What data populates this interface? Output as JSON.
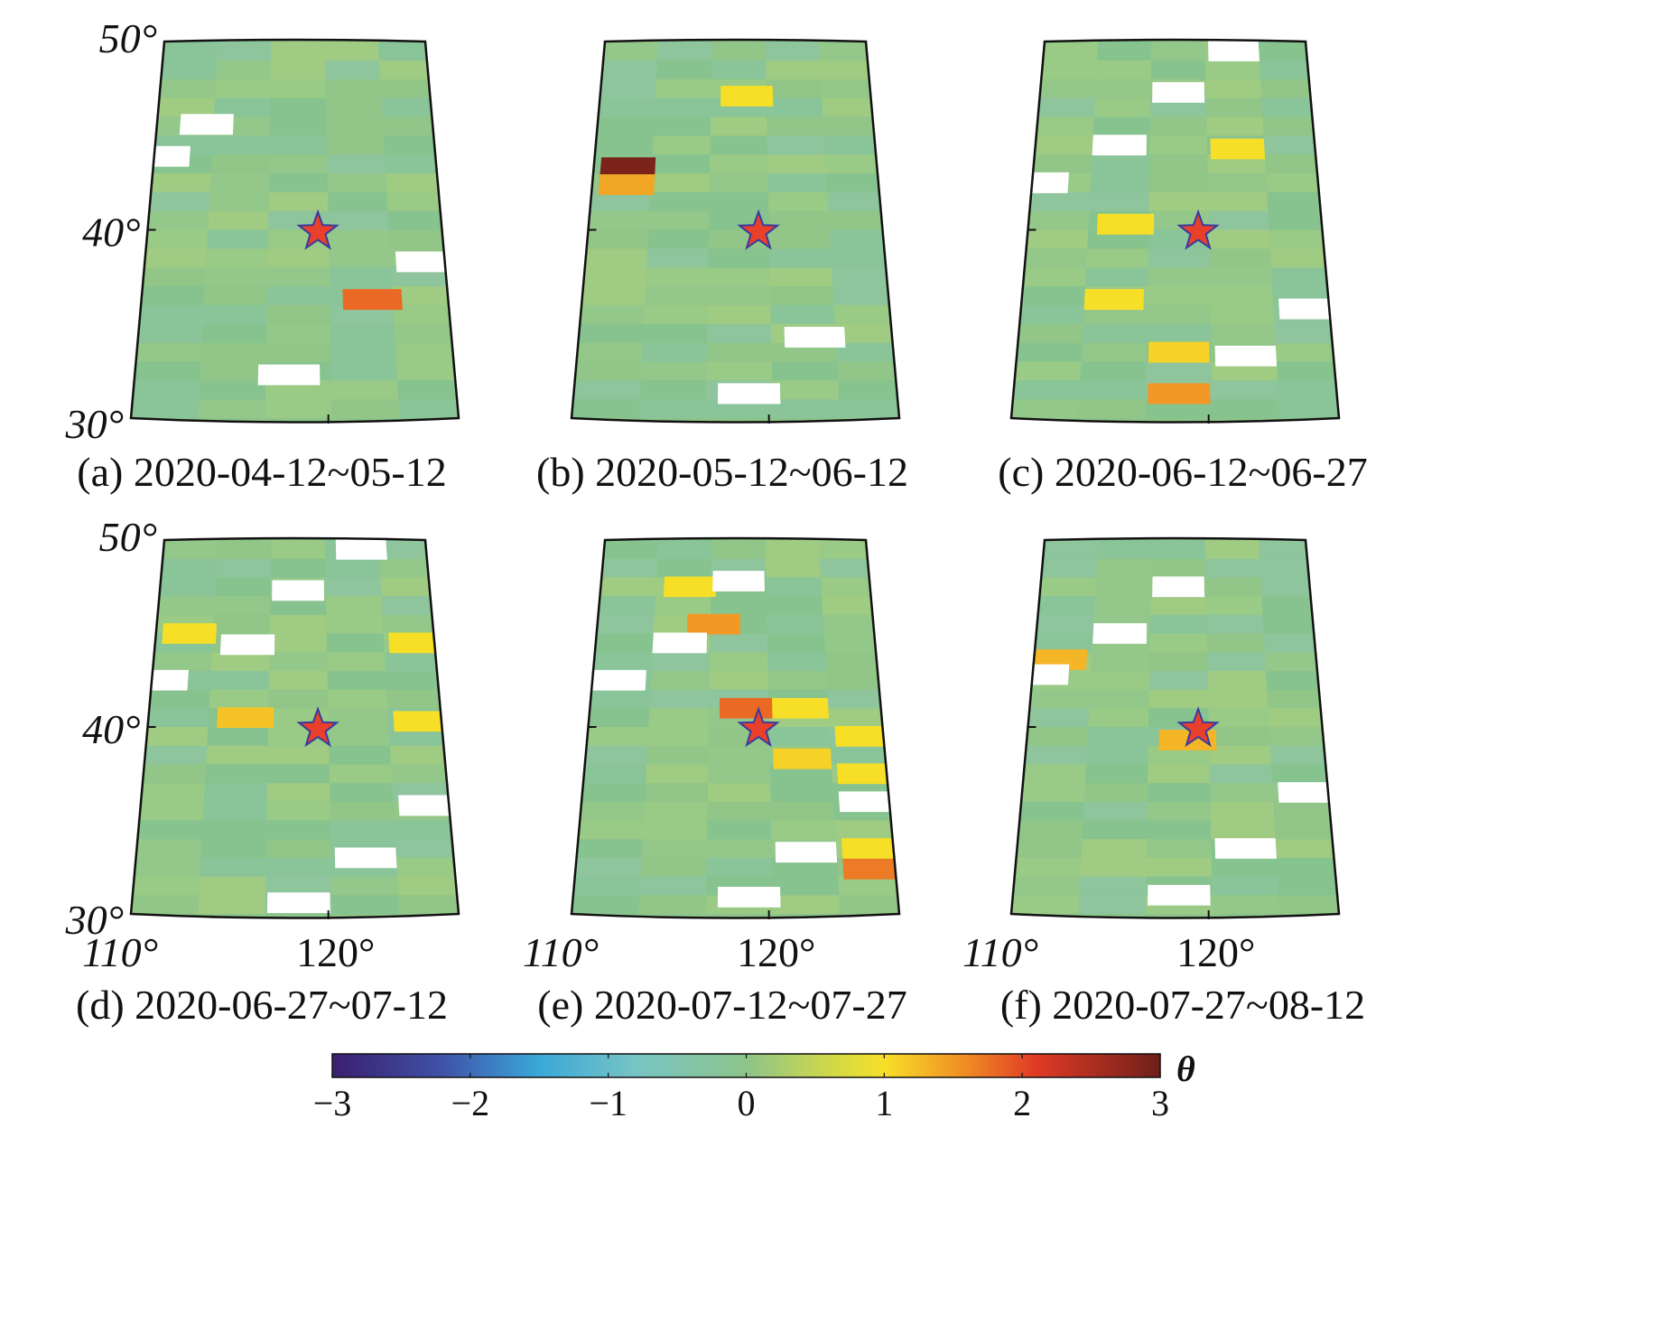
{
  "figure": {
    "axis_labels": {
      "lat": [
        "50°",
        "40°",
        "30°"
      ],
      "lon": [
        "110°",
        "120°"
      ]
    },
    "epicenter": {
      "lon": 119.6,
      "lat": 39.9,
      "marker": "star-icon"
    },
    "colors": {
      "base_green": "#8dc48a",
      "white": "#ffffff",
      "star_fill": "#e8402a",
      "star_stroke": "#3a3aa0"
    }
  },
  "panels": [
    {
      "id": "a",
      "caption": "(a) 2020-04-12~05-12",
      "anomalies": [
        {
          "lon": 113.0,
          "lat": 45.6,
          "theta": "nodata"
        },
        {
          "lon": 110.5,
          "lat": 43.9,
          "theta": "nodata"
        },
        {
          "lon": 122.5,
          "lat": 36.3,
          "theta": 1.8
        },
        {
          "lon": 125.5,
          "lat": 38.3,
          "theta": "nodata"
        },
        {
          "lon": 118.0,
          "lat": 32.3,
          "theta": "nodata"
        }
      ]
    },
    {
      "id": "b",
      "caption": "(b) 2020-05-12~06-12",
      "anomalies": [
        {
          "lon": 119.0,
          "lat": 47.1,
          "theta": 1.0
        },
        {
          "lon": 112.0,
          "lat": 43.3,
          "theta": 2.9
        },
        {
          "lon": 112.0,
          "lat": 42.4,
          "theta": 1.4
        },
        {
          "lon": 122.5,
          "lat": 34.3,
          "theta": "nodata"
        },
        {
          "lon": 119.0,
          "lat": 31.3,
          "theta": "nodata"
        }
      ]
    },
    {
      "id": "c",
      "caption": "(c) 2020-06-12~06-27",
      "anomalies": [
        {
          "lon": 122.0,
          "lat": 49.5,
          "theta": "nodata"
        },
        {
          "lon": 118.5,
          "lat": 47.3,
          "theta": "nodata"
        },
        {
          "lon": 115.0,
          "lat": 44.5,
          "theta": "nodata"
        },
        {
          "lon": 122.0,
          "lat": 44.3,
          "theta": 1.0
        },
        {
          "lon": 110.5,
          "lat": 42.5,
          "theta": "nodata"
        },
        {
          "lon": 115.5,
          "lat": 40.3,
          "theta": 1.0
        },
        {
          "lon": 115.0,
          "lat": 36.3,
          "theta": 1.0
        },
        {
          "lon": 118.5,
          "lat": 33.5,
          "theta": 1.1
        },
        {
          "lon": 122.0,
          "lat": 33.3,
          "theta": "nodata"
        },
        {
          "lon": 125.5,
          "lat": 35.8,
          "theta": "nodata"
        },
        {
          "lon": 118.5,
          "lat": 31.3,
          "theta": 1.5
        }
      ]
    },
    {
      "id": "d",
      "caption": "(d) 2020-06-27~07-12",
      "anomalies": [
        {
          "lon": 122.5,
          "lat": 49.5,
          "theta": "nodata"
        },
        {
          "lon": 118.5,
          "lat": 47.3,
          "theta": "nodata"
        },
        {
          "lon": 115.5,
          "lat": 44.4,
          "theta": "nodata"
        },
        {
          "lon": 112.0,
          "lat": 45.0,
          "theta": 1.0
        },
        {
          "lon": 125.5,
          "lat": 44.5,
          "theta": 1.0
        },
        {
          "lon": 110.5,
          "lat": 42.5,
          "theta": "nodata"
        },
        {
          "lon": 115.5,
          "lat": 40.5,
          "theta": 1.2
        },
        {
          "lon": 125.5,
          "lat": 40.3,
          "theta": 1.0
        },
        {
          "lon": 125.5,
          "lat": 35.8,
          "theta": "nodata"
        },
        {
          "lon": 122.0,
          "lat": 33.0,
          "theta": "nodata"
        },
        {
          "lon": 118.5,
          "lat": 30.6,
          "theta": "nodata"
        }
      ]
    },
    {
      "id": "e",
      "caption": "(e) 2020-07-12~07-27",
      "anomalies": [
        {
          "lon": 115.5,
          "lat": 47.5,
          "theta": 1.0
        },
        {
          "lon": 118.5,
          "lat": 47.8,
          "theta": "nodata"
        },
        {
          "lon": 117.0,
          "lat": 45.5,
          "theta": 1.5
        },
        {
          "lon": 115.0,
          "lat": 44.5,
          "theta": "nodata"
        },
        {
          "lon": 111.5,
          "lat": 42.5,
          "theta": "nodata"
        },
        {
          "lon": 119.0,
          "lat": 41.0,
          "theta": 1.8
        },
        {
          "lon": 122.0,
          "lat": 41.0,
          "theta": 1.0
        },
        {
          "lon": 125.5,
          "lat": 39.5,
          "theta": 1.0
        },
        {
          "lon": 122.0,
          "lat": 38.3,
          "theta": 1.1
        },
        {
          "lon": 125.5,
          "lat": 37.5,
          "theta": 1.0
        },
        {
          "lon": 125.5,
          "lat": 36.0,
          "theta": "nodata"
        },
        {
          "lon": 122.0,
          "lat": 33.3,
          "theta": "nodata"
        },
        {
          "lon": 125.5,
          "lat": 33.5,
          "theta": 1.0
        },
        {
          "lon": 125.5,
          "lat": 32.4,
          "theta": 1.7
        },
        {
          "lon": 119.0,
          "lat": 30.9,
          "theta": "nodata"
        }
      ]
    },
    {
      "id": "f",
      "caption": "(f) 2020-07-27~08-12",
      "anomalies": [
        {
          "lon": 118.5,
          "lat": 47.5,
          "theta": "nodata"
        },
        {
          "lon": 115.0,
          "lat": 45.0,
          "theta": "nodata"
        },
        {
          "lon": 111.5,
          "lat": 43.6,
          "theta": 1.3
        },
        {
          "lon": 110.5,
          "lat": 42.8,
          "theta": "nodata"
        },
        {
          "lon": 119.0,
          "lat": 39.3,
          "theta": 1.3
        },
        {
          "lon": 125.5,
          "lat": 36.5,
          "theta": "nodata"
        },
        {
          "lon": 122.0,
          "lat": 33.5,
          "theta": "nodata"
        },
        {
          "lon": 118.5,
          "lat": 31.0,
          "theta": "nodata"
        }
      ]
    }
  ],
  "colorbar": {
    "label": "θ",
    "ticks": [
      "−3",
      "−2",
      "−1",
      "0",
      "1",
      "2",
      "3"
    ],
    "min": -3,
    "max": 3,
    "stops": [
      {
        "v": -3,
        "c": "#3b1f6e"
      },
      {
        "v": -2.2,
        "c": "#3f52a8"
      },
      {
        "v": -1.5,
        "c": "#3aa8d8"
      },
      {
        "v": -0.8,
        "c": "#77c4c4"
      },
      {
        "v": 0,
        "c": "#8dc48a"
      },
      {
        "v": 0.6,
        "c": "#cfd84a"
      },
      {
        "v": 1,
        "c": "#f7df28"
      },
      {
        "v": 1.6,
        "c": "#f08a25"
      },
      {
        "v": 2.1,
        "c": "#e03a25"
      },
      {
        "v": 3,
        "c": "#6e1f1a"
      }
    ]
  }
}
